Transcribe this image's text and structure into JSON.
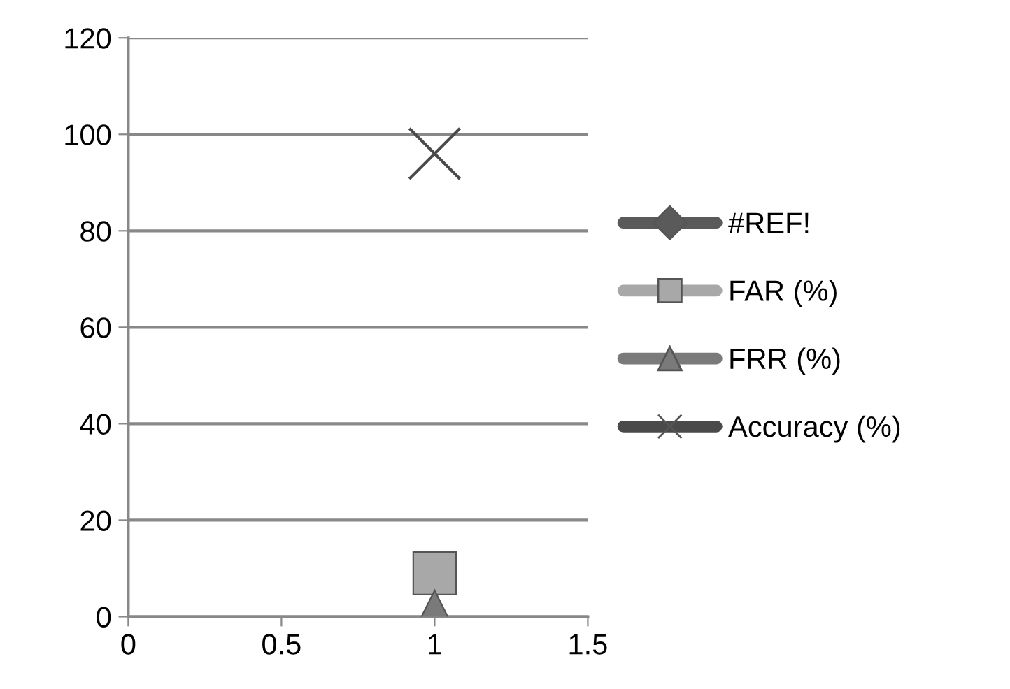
{
  "chart_data": {
    "type": "scatter",
    "xlim": [
      0,
      1.5
    ],
    "xticks": [
      0,
      0.5,
      1,
      1.5
    ],
    "ylim": [
      0,
      120
    ],
    "yticks": [
      0,
      20,
      40,
      60,
      80,
      100,
      120
    ],
    "grid": "y",
    "legend": "right",
    "line_style": "solid",
    "x": [
      1
    ],
    "series": [
      {
        "name": "#REF!",
        "color": "#5a5a5a",
        "marker": "diamond",
        "values": [
          null
        ]
      },
      {
        "name": "FAR (%)",
        "color": "#a8a8a8",
        "marker": "square",
        "values": [
          9
        ]
      },
      {
        "name": "FRR (%)",
        "color": "#7a7a7a",
        "marker": "triangle",
        "values": [
          1
        ]
      },
      {
        "name": "Accuracy (%)",
        "color": "#4a4a4a",
        "marker": "cross",
        "values": [
          96
        ]
      }
    ]
  }
}
